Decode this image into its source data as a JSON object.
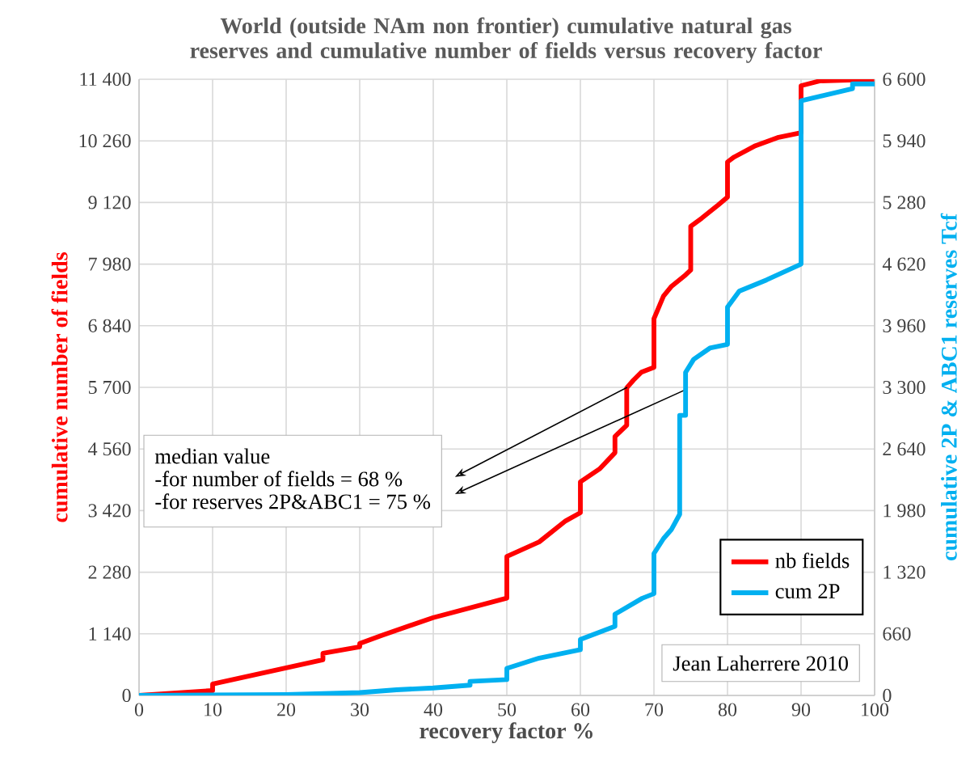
{
  "chart_data": {
    "type": "line",
    "title": "World (outside NAm non frontier) cumulative natural gas reserves and cumulative number of fields versus recovery factor",
    "xlabel": "recovery factor %",
    "ylabel": "cumulative number of fields",
    "y2label": "cumulative 2P & ABC1 reserves Tcf",
    "xlim": [
      0,
      100
    ],
    "xticks": [
      0,
      10,
      20,
      30,
      40,
      50,
      60,
      70,
      80,
      90,
      100
    ],
    "ylim": [
      0,
      11400
    ],
    "yticks": [
      0,
      {
        "value": 1140,
        "label": "1 140"
      },
      {
        "value": 2280,
        "label": "2 280"
      },
      {
        "value": 3420,
        "label": "3 420"
      },
      {
        "value": 4560,
        "label": "4 560"
      },
      {
        "value": 5700,
        "label": "5 700"
      },
      {
        "value": 6840,
        "label": "6 840"
      },
      {
        "value": 7980,
        "label": "7 980"
      },
      {
        "value": 9120,
        "label": "9 120"
      },
      {
        "value": 10260,
        "label": "10 260"
      },
      {
        "value": 11400,
        "label": "11 400"
      }
    ],
    "y2lim": [
      0,
      6600
    ],
    "y2ticks": [
      0,
      660,
      {
        "value": 1320,
        "label": "1 320"
      },
      {
        "value": 1980,
        "label": "1 980"
      },
      {
        "value": 2640,
        "label": "2 640"
      },
      {
        "value": 3300,
        "label": "3 300"
      },
      {
        "value": 3960,
        "label": "3 960"
      },
      {
        "value": 4620,
        "label": "4 620"
      },
      {
        "value": 5280,
        "label": "5 280"
      },
      {
        "value": 5940,
        "label": "5 940"
      },
      {
        "value": 6600,
        "label": "6 600"
      }
    ],
    "grid": true,
    "legend": "bottom right",
    "line_style": "solid",
    "series": [
      {
        "name": "nb fields",
        "color": "#ff0000",
        "x": [
          0,
          10,
          10,
          20,
          25,
          25,
          30,
          30,
          33,
          40,
          50,
          50,
          54.4,
          58,
          60,
          60,
          62.6,
          64.7,
          64.7,
          66.3,
          66.3,
          67.2,
          68.3,
          70,
          70,
          71.3,
          72.4,
          74.3,
          75,
          75,
          76.5,
          78.7,
          80,
          80,
          80.9,
          83.8,
          86.8,
          90,
          90,
          92.6,
          100
        ],
        "values": [
          0,
          90,
          210,
          510,
          660,
          780,
          900,
          960,
          1110,
          1440,
          1800,
          2570,
          2840,
          3230,
          3380,
          3950,
          4190,
          4490,
          4790,
          5000,
          5690,
          5830,
          5980,
          6070,
          6970,
          7390,
          7570,
          7780,
          7870,
          8680,
          8830,
          9070,
          9220,
          9870,
          9960,
          10170,
          10320,
          10410,
          11280,
          11370,
          11400
        ]
      },
      {
        "name": "cum 2P",
        "color": "#00b0f0",
        "axis": "y2",
        "x": [
          0,
          20,
          30,
          35,
          40,
          45,
          45,
          50,
          50,
          54.4,
          60,
          60,
          64.7,
          64.7,
          68.4,
          70,
          70,
          71.3,
          72.4,
          73.5,
          73.5,
          74.3,
          74.3,
          75.4,
          77.6,
          80,
          80,
          81.6,
          85.3,
          90,
          90,
          97,
          97,
          100
        ],
        "values": [
          0,
          10,
          30,
          60,
          80,
          110,
          150,
          170,
          290,
          400,
          490,
          600,
          740,
          870,
          1040,
          1090,
          1520,
          1680,
          1780,
          1940,
          3000,
          3000,
          3460,
          3600,
          3720,
          3760,
          4160,
          4330,
          4450,
          4620,
          6370,
          6500,
          6550,
          6550
        ]
      }
    ],
    "annotations": [
      "median value",
      "-for number of fields = 68 %",
      "-for reserves 2P&ABC1 = 75 %",
      "Jean Laherrere 2010"
    ]
  }
}
